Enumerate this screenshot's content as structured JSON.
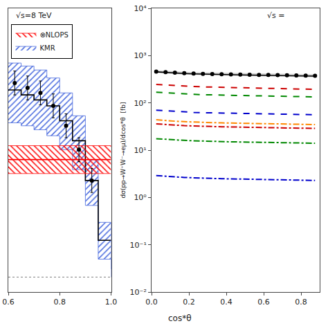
{
  "chart_data": [
    {
      "type": "step",
      "title": "√s=8 TeV",
      "xlim": [
        0.6,
        1.0
      ],
      "ylim": [
        -15,
        270
      ],
      "xticks": [
        0.6,
        0.8,
        {
          "value": 1.0,
          "label": "1.0"
        }
      ],
      "tick_labels": "x",
      "grid": false,
      "legend": "upper left",
      "series": [
        {
          "name": "KMR",
          "type": "band",
          "color": "#4466dd",
          "x": [
            0.6,
            0.65,
            0.7,
            0.75,
            0.8,
            0.85,
            0.9,
            0.95,
            1.0
          ],
          "upper": [
            215,
            212,
            208,
            200,
            185,
            162,
            118,
            55,
            8
          ],
          "lower": [
            155,
            152,
            148,
            142,
            128,
            108,
            72,
            18,
            0
          ]
        },
        {
          "type": "step",
          "color": "black",
          "bins": [
            0.6,
            0.65,
            0.7,
            0.75,
            0.8,
            0.85,
            0.9,
            0.95,
            1.0
          ],
          "values": [
            188,
            183,
            178,
            172,
            157,
            137,
            97,
            37
          ]
        },
        {
          "name": "⊗NLOPS",
          "type": "band",
          "color": "red",
          "x": [
            0.6,
            1.0
          ],
          "upper": 132,
          "lower": 104
        },
        {
          "type": "hline",
          "color": "red",
          "y": 118
        },
        {
          "type": "scatter",
          "color": "black",
          "marker": "circle",
          "x": [
            0.625,
            0.675,
            0.725,
            0.775,
            0.825,
            0.875,
            0.925
          ],
          "values": [
            195,
            190,
            185,
            172,
            152,
            128,
            97
          ],
          "error": [
            12,
            12,
            12,
            12,
            12,
            12,
            12
          ]
        },
        {
          "type": "hline",
          "color": "gray",
          "line_style": "dotted",
          "y": 0
        }
      ]
    },
    {
      "type": "line",
      "xlabel": "cos*θ",
      "ylabel": "dσ(pp→W⁺W⁻→eμ)/dcos*θ  [fb]",
      "log": "y",
      "xlim": [
        0.0,
        0.9
      ],
      "ylim": [
        0.01,
        10000
      ],
      "xticks": [
        {
          "value": 0,
          "label": "0.0"
        },
        0.2,
        0.4,
        0.6,
        0.8
      ],
      "yticks": [
        {
          "value": 0.01,
          "label": "10⁻²"
        },
        {
          "value": 0.1,
          "label": "10⁻¹"
        },
        {
          "value": 1,
          "label": "10⁰"
        },
        {
          "value": 10,
          "label": "10¹"
        },
        {
          "value": 100,
          "label": "10²"
        },
        {
          "value": 1000,
          "label": "10³"
        },
        {
          "value": 10000,
          "label": "10⁴"
        }
      ],
      "grid": false,
      "annotations": [
        {
          "text": "√s ="
        }
      ],
      "x": [
        0.025,
        0.075,
        0.125,
        0.175,
        0.225,
        0.275,
        0.325,
        0.375,
        0.425,
        0.475,
        0.525,
        0.575,
        0.625,
        0.675,
        0.725,
        0.775,
        0.825,
        0.875
      ],
      "series": [
        {
          "type": "band",
          "color": "lightgray",
          "upper": [
            490,
            475,
            465,
            455,
            448,
            442,
            438,
            435,
            432,
            428,
            425,
            422,
            420,
            416,
            413,
            410,
            407,
            405
          ],
          "lower": [
            432,
            417,
            407,
            397,
            390,
            384,
            380,
            377,
            374,
            370,
            367,
            364,
            362,
            358,
            355,
            352,
            349,
            347
          ]
        },
        {
          "color": "#000000",
          "line_style": "solid",
          "values": [
            452,
            438,
            428,
            418,
            411,
            405,
            401,
            398,
            395,
            391,
            388,
            385,
            383,
            379,
            376,
            373,
            370,
            368
          ]
        },
        {
          "color": "#cc0000",
          "line_style": "dashed",
          "values": [
            245,
            238,
            232,
            226,
            222,
            218,
            216,
            213,
            211,
            209,
            207,
            205,
            203,
            200,
            198,
            196,
            194,
            193
          ]
        },
        {
          "color": "#008800",
          "line_style": "dashed",
          "values": [
            168,
            163,
            159,
            155,
            152,
            149,
            147,
            145,
            144,
            143,
            142,
            141,
            140,
            138,
            137,
            136,
            135,
            134
          ]
        },
        {
          "color": "#0000cc",
          "line_style": "dashed",
          "values": [
            70,
            68,
            66,
            64,
            63,
            62,
            61.5,
            61,
            60.5,
            60,
            59.5,
            59,
            58.5,
            58,
            57.5,
            57,
            56.5,
            56
          ]
        },
        {
          "color": "#ff8800",
          "line_style": "dashdot",
          "values": [
            44,
            42,
            41,
            40,
            39.2,
            38.5,
            38.1,
            37.7,
            37.4,
            37.1,
            36.8,
            36.5,
            36.2,
            35.9,
            35.6,
            35.3,
            35.0,
            34.8
          ]
        },
        {
          "color": "#cc0000",
          "line_style": "dashdot",
          "values": [
            36,
            34.7,
            33.8,
            33.0,
            32.5,
            31.9,
            31.6,
            31.2,
            31.0,
            30.7,
            30.4,
            30.2,
            30.0,
            29.7,
            29.4,
            29.2,
            29.0,
            28.8
          ]
        },
        {
          "color": "#008800",
          "line_style": "dashdot",
          "values": [
            17.5,
            16.9,
            16.5,
            16.1,
            15.8,
            15.5,
            15.3,
            15.1,
            15.0,
            14.9,
            14.8,
            14.7,
            14.6,
            14.4,
            14.3,
            14.2,
            14.1,
            14.0
          ]
        },
        {
          "color": "#0000cc",
          "line_style": "dashdot",
          "values": [
            2.9,
            2.8,
            2.72,
            2.65,
            2.6,
            2.55,
            2.52,
            2.49,
            2.47,
            2.45,
            2.43,
            2.41,
            2.39,
            2.37,
            2.35,
            2.33,
            2.31,
            2.29
          ]
        },
        {
          "type": "scatter",
          "color": "black",
          "marker": "circle",
          "values": [
            460,
            445,
            435,
            425,
            418,
            412,
            408,
            405,
            402,
            398,
            395,
            392,
            390,
            386,
            383,
            380,
            377,
            375
          ],
          "error": [
            22,
            22,
            22,
            22,
            22,
            22,
            22,
            22,
            22,
            22,
            22,
            22,
            22,
            22,
            22,
            22,
            22,
            22
          ]
        }
      ]
    }
  ]
}
